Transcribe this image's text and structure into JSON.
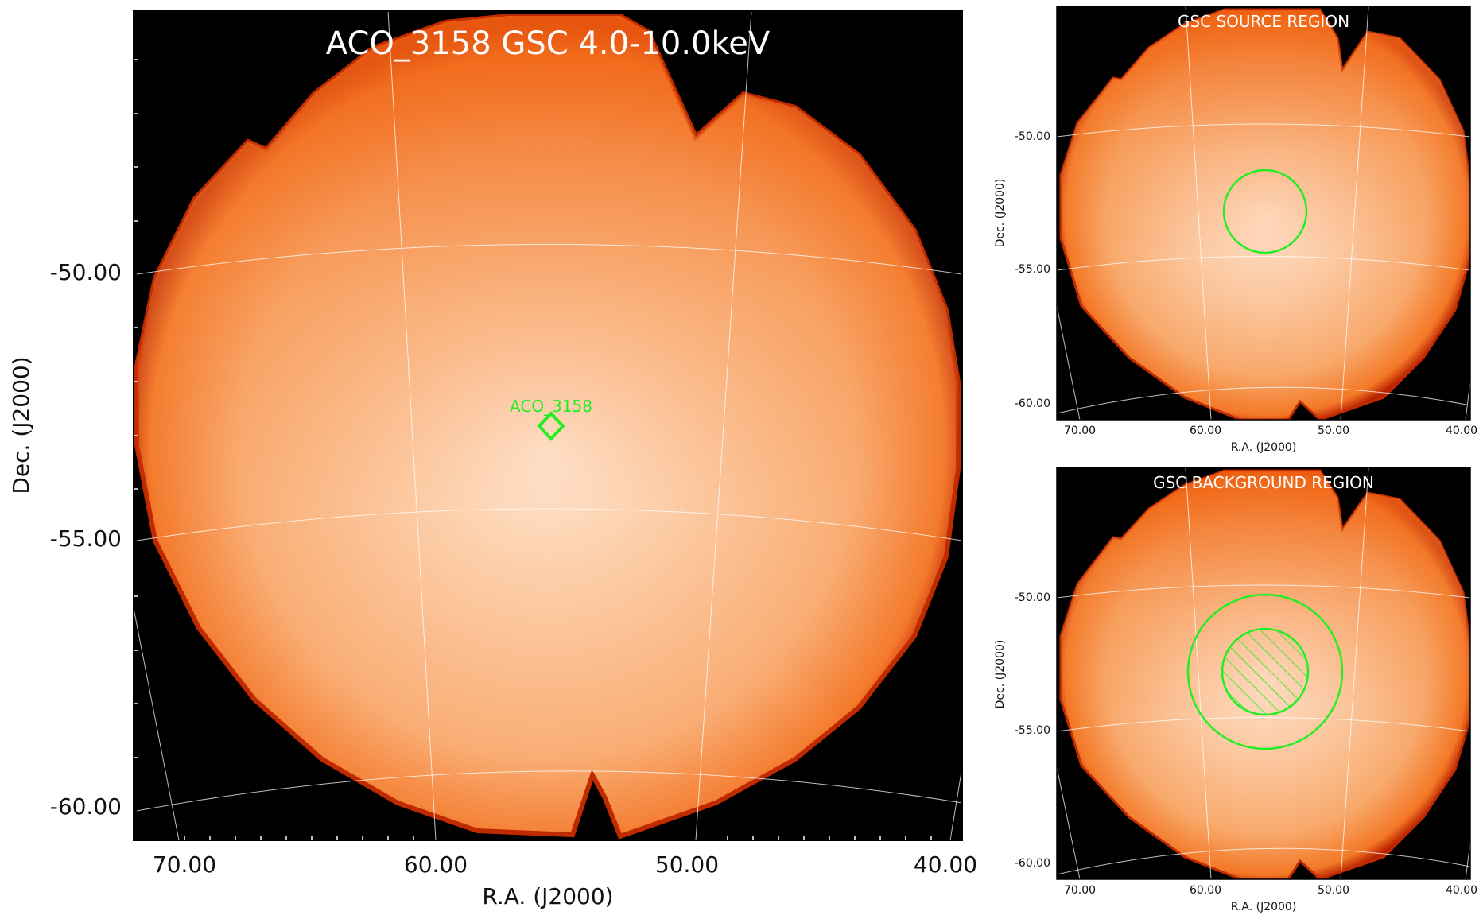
{
  "colors": {
    "background": "#000000",
    "disk_center": "#ffe6d2",
    "disk_mid": "#fbbf92",
    "disk_edge": "#f47a2c",
    "disk_rim": "#b81e00",
    "region": "#22ee22",
    "grid": "#ffffff"
  },
  "main": {
    "title": "ACO_3158 GSC 4.0-10.0keV",
    "xlabel": "R.A. (J2000)",
    "ylabel": "Dec. (J2000)",
    "x_ticks": [
      "70.00",
      "60.00",
      "50.00",
      "40.00"
    ],
    "y_ticks": [
      "-50.00",
      "-55.00",
      "-60.00"
    ],
    "source_label": "ACO_3158",
    "source_marker": "diamond-icon"
  },
  "source_panel": {
    "title": "GSC SOURCE REGION",
    "xlabel": "R.A. (J2000)",
    "ylabel": "Dec. (J2000)",
    "x_ticks": [
      "70.00",
      "60.00",
      "50.00",
      "40.00"
    ],
    "y_ticks": [
      "-50.00",
      "-55.00",
      "-60.00"
    ]
  },
  "background_panel": {
    "title": "GSC BACKGROUND REGION",
    "xlabel": "R.A. (J2000)",
    "ylabel": "Dec. (J2000)",
    "x_ticks": [
      "70.00",
      "60.00",
      "50.00",
      "40.00"
    ],
    "y_ticks": [
      "-50.00",
      "-55.00",
      "-60.00"
    ]
  }
}
